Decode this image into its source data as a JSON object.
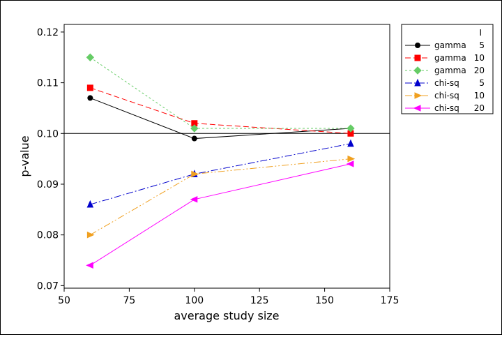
{
  "chart_data": {
    "type": "line",
    "title": "",
    "xlabel": "average study size",
    "ylabel": "p-value",
    "xlim": [
      50,
      175
    ],
    "ylim": [
      0.0695,
      0.1215
    ],
    "xticks": [
      50,
      75,
      100,
      125,
      150,
      175
    ],
    "xtick_labels": [
      "50",
      "75",
      "100",
      "125",
      "150",
      "175"
    ],
    "yticks": [
      0.07,
      0.08,
      0.09,
      0.1,
      0.11,
      0.12
    ],
    "ytick_labels": [
      "0.07",
      "0.08",
      "0.09",
      "0.10",
      "0.11",
      "0.12"
    ],
    "reference_line": 0.1,
    "grid": false,
    "legend_position": "right",
    "legend_header": "I",
    "x": [
      60,
      100,
      160
    ],
    "series": [
      {
        "name": "gamma",
        "I": "5",
        "color": "#000000",
        "marker": "circle",
        "dash": "solid",
        "values": [
          0.107,
          0.099,
          0.101
        ]
      },
      {
        "name": "gamma",
        "I": "10",
        "color": "#ff0000",
        "marker": "square",
        "dash": "dashed",
        "values": [
          0.109,
          0.102,
          0.1
        ]
      },
      {
        "name": "gamma",
        "I": "20",
        "color": "#66cc66",
        "marker": "diamond",
        "dash": "dotted",
        "values": [
          0.115,
          0.101,
          0.101
        ]
      },
      {
        "name": "chi-sq",
        "I": "5",
        "color": "#0000cc",
        "marker": "triangle-up",
        "dash": "dashdot",
        "values": [
          0.086,
          0.092,
          0.098
        ]
      },
      {
        "name": "chi-sq",
        "I": "10",
        "color": "#f0a020",
        "marker": "triangle-right",
        "dash": "dashdotdot",
        "values": [
          0.08,
          0.092,
          0.095
        ]
      },
      {
        "name": "chi-sq",
        "I": "20",
        "color": "#ff00ff",
        "marker": "triangle-left",
        "dash": "solid",
        "values": [
          0.074,
          0.087,
          0.094
        ]
      }
    ]
  }
}
